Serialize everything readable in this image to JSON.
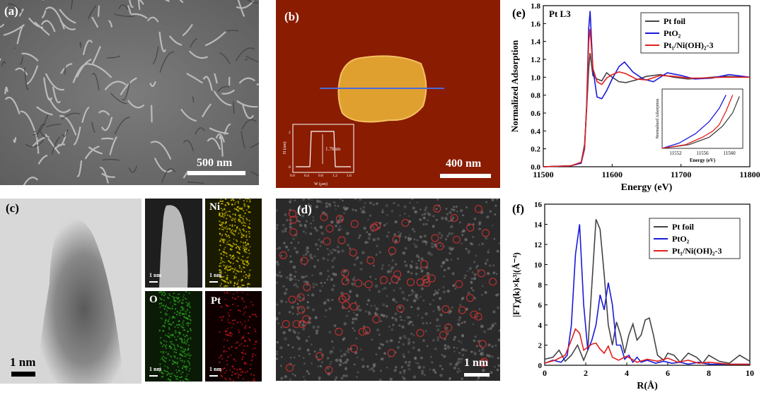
{
  "panels": {
    "a": {
      "label": "(a)",
      "scale": "500 nm"
    },
    "b": {
      "label": "(b)",
      "scale": "400 nm",
      "inset": {
        "ylabel": "H (nm)",
        "xlabel": "W (μm)",
        "annotation": "1.76nm",
        "xticks": [
          "0.0",
          "0.4",
          "0.8",
          "1.2",
          "1.6"
        ],
        "yticks": [
          "0",
          "2"
        ]
      }
    },
    "c": {
      "label": "(c)",
      "scale": "1 nm",
      "maps": [
        {
          "label": "",
          "scale": "1 nm"
        },
        {
          "label": "Ni",
          "scale": "1 nm"
        },
        {
          "label": "O",
          "scale": "1 nm"
        },
        {
          "label": "Pt",
          "scale": "1 nm"
        }
      ]
    },
    "d": {
      "label": "(d)",
      "scale": "1 nm"
    }
  },
  "colors": {
    "pt_foil": "#444444",
    "pto2": "#1a1adc",
    "pt1": "#e0201e",
    "afm_bg": "#8a1c02",
    "afm_flake": "#e0a030",
    "ni": "#c8b800",
    "o": "#2a9a1e",
    "pt_map": "#c0141e",
    "d_circle": "#c43030"
  },
  "chart_data": [
    {
      "type": "line",
      "panel_label": "(e)",
      "annotation": "Pt L3",
      "xlabel": "Energy (eV)",
      "ylabel": "Normalized Adsorption",
      "xlim": [
        11500,
        11800
      ],
      "ylim": [
        0,
        1.8
      ],
      "xticks": [
        11500,
        11600,
        11700,
        11800
      ],
      "yticks": [
        0.0,
        0.2,
        0.4,
        0.6,
        0.8,
        1.0,
        1.2,
        1.4,
        1.6,
        1.8
      ],
      "legend_position": "top-right",
      "series": [
        {
          "name": "Pt foil",
          "x": [
            11500,
            11540,
            11555,
            11560,
            11563,
            11566,
            11568,
            11572,
            11578,
            11585,
            11592,
            11600,
            11610,
            11620,
            11635,
            11650,
            11670,
            11690,
            11710,
            11730,
            11760,
            11800
          ],
          "y": [
            0.0,
            0.01,
            0.05,
            0.25,
            0.65,
            1.1,
            1.27,
            1.02,
            0.98,
            0.96,
            1.05,
            1.0,
            0.95,
            0.94,
            0.97,
            1.01,
            1.03,
            1.0,
            0.98,
            0.99,
            1.01,
            1.0
          ]
        },
        {
          "name": "PtO₂",
          "x": [
            11500,
            11540,
            11555,
            11560,
            11563,
            11566,
            11568,
            11572,
            11578,
            11585,
            11592,
            11600,
            11610,
            11618,
            11630,
            11645,
            11660,
            11680,
            11700,
            11720,
            11745,
            11770,
            11800
          ],
          "y": [
            0.0,
            0.01,
            0.04,
            0.2,
            0.7,
            1.55,
            1.74,
            1.1,
            0.78,
            0.76,
            0.85,
            0.98,
            1.12,
            1.17,
            1.06,
            0.98,
            0.95,
            1.05,
            1.02,
            0.98,
            0.99,
            1.03,
            1.0
          ]
        },
        {
          "name": "Pt₁/Ni(OH)₂-3",
          "x": [
            11500,
            11540,
            11555,
            11560,
            11563,
            11566,
            11568,
            11572,
            11578,
            11585,
            11592,
            11600,
            11610,
            11620,
            11635,
            11650,
            11670,
            11690,
            11710,
            11730,
            11760,
            11800
          ],
          "y": [
            0.0,
            0.01,
            0.05,
            0.22,
            0.68,
            1.4,
            1.54,
            1.1,
            0.95,
            0.92,
            0.99,
            1.03,
            1.06,
            1.04,
            0.98,
            0.97,
            1.02,
            1.01,
            0.99,
            0.99,
            1.0,
            1.0
          ]
        }
      ],
      "inset": {
        "xlabel": "Energy (eV)",
        "ylabel": "Normalized Adsorption",
        "xlim": [
          11550,
          11562
        ],
        "ylim": [
          0.2,
          1.0
        ],
        "xticks": [
          11552,
          11556,
          11560
        ],
        "series": [
          {
            "name": "Pt foil",
            "x": [
              11550,
              11554,
              11557,
              11559,
              11560.5,
              11561.5
            ],
            "y": [
              0.2,
              0.25,
              0.35,
              0.5,
              0.68,
              0.9
            ]
          },
          {
            "name": "PtO₂",
            "x": [
              11550,
              11552.5,
              11555,
              11557,
              11558.5,
              11559.5
            ],
            "y": [
              0.2,
              0.27,
              0.4,
              0.56,
              0.74,
              0.92
            ]
          },
          {
            "name": "Pt₁/Ni(OH)₂-3",
            "x": [
              11550,
              11553.5,
              11556,
              11557.5,
              11558.5,
              11559.5,
              11560.5
            ],
            "y": [
              0.2,
              0.25,
              0.35,
              0.43,
              0.52,
              0.7,
              0.92
            ]
          }
        ]
      }
    },
    {
      "type": "line",
      "panel_label": "(f)",
      "xlabel": "R(Å)",
      "ylabel": "|FTχ(k)×k³|(Å⁻⁴)",
      "xlim": [
        0,
        10
      ],
      "ylim": [
        0,
        16
      ],
      "xticks": [
        0,
        2,
        4,
        6,
        8,
        10
      ],
      "yticks": [
        0,
        2,
        4,
        6,
        8,
        10,
        12,
        14,
        16
      ],
      "legend_position": "top-right",
      "series": [
        {
          "name": "Pt foil",
          "x": [
            0,
            0.4,
            0.7,
            1.0,
            1.3,
            1.6,
            1.9,
            2.1,
            2.3,
            2.5,
            2.7,
            2.9,
            3.1,
            3.3,
            3.5,
            3.7,
            3.9,
            4.1,
            4.3,
            4.5,
            4.7,
            4.9,
            5.1,
            5.3,
            5.5,
            5.8,
            6.0,
            6.3,
            6.6,
            7.0,
            7.4,
            7.7,
            8.0,
            8.5,
            9.0,
            9.5,
            10
          ],
          "y": [
            0.6,
            0.8,
            1.5,
            0.4,
            1.0,
            2.0,
            0.5,
            1.5,
            8.0,
            14.5,
            13.5,
            9.0,
            4.0,
            2.0,
            4.3,
            3.0,
            1.2,
            3.0,
            4.1,
            2.5,
            3.0,
            4.5,
            4.7,
            3.0,
            1.0,
            0.5,
            1.2,
            1.0,
            0.3,
            1.2,
            0.8,
            0.2,
            1.0,
            0.4,
            0.2,
            1.0,
            0.4
          ]
        },
        {
          "name": "PtO₂",
          "x": [
            0,
            0.4,
            0.8,
            1.1,
            1.3,
            1.5,
            1.7,
            1.9,
            2.1,
            2.3,
            2.5,
            2.7,
            2.9,
            3.1,
            3.3,
            3.5,
            3.7,
            3.9,
            4.1,
            4.3,
            4.5,
            4.7,
            5.0,
            5.4,
            5.8,
            6.2,
            6.6,
            7.0,
            7.5,
            8.0,
            9.0,
            10
          ],
          "y": [
            0.2,
            0.5,
            0.3,
            1.0,
            4.0,
            11.0,
            14.0,
            6.0,
            1.5,
            2.5,
            4.0,
            7.0,
            5.5,
            8.2,
            6.0,
            2.0,
            2.0,
            0.6,
            1.0,
            0.3,
            0.8,
            0.3,
            0.5,
            0.2,
            0.4,
            0.2,
            0.3,
            0.1,
            0.3,
            0.1,
            0.1,
            0.1
          ]
        },
        {
          "name": "Pt₁/Ni(OH)₂-3",
          "x": [
            0,
            0.5,
            1.0,
            1.3,
            1.5,
            1.7,
            1.9,
            2.1,
            2.3,
            2.5,
            2.7,
            2.9,
            3.1,
            3.3,
            3.6,
            4.0,
            4.5,
            5.0,
            5.5,
            6.0,
            6.5,
            7.0,
            7.5,
            8.0,
            9.0,
            10
          ],
          "y": [
            0.2,
            0.5,
            1.0,
            2.5,
            3.6,
            3.2,
            1.5,
            1.8,
            2.1,
            2.2,
            1.6,
            1.2,
            1.9,
            0.8,
            0.5,
            0.9,
            0.3,
            0.6,
            0.4,
            0.7,
            0.3,
            0.5,
            0.2,
            0.3,
            0.1,
            0.1
          ]
        }
      ]
    }
  ]
}
